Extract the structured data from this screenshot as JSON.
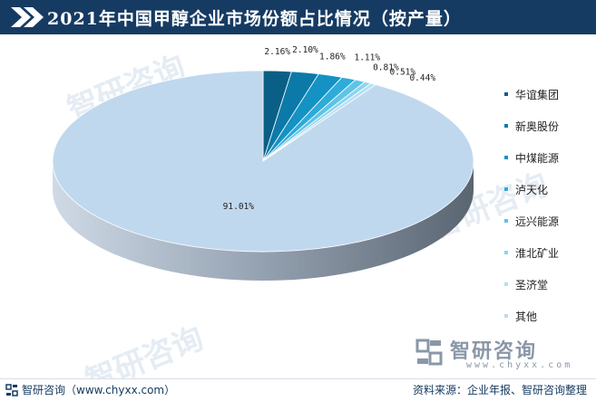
{
  "header": {
    "title": "2021年中国甲醇企业市场份额占比情况（按产量）"
  },
  "chart_data": {
    "type": "pie",
    "title": "2021年中国甲醇企业市场份额占比情况（按产量）",
    "slices": [
      {
        "name": "华谊集团",
        "value": 2.16,
        "label": "2.16%",
        "color": "#0a5f86"
      },
      {
        "name": "新奥股份",
        "value": 2.1,
        "label": "2.10%",
        "color": "#0b7aa8"
      },
      {
        "name": "中煤能源",
        "value": 1.86,
        "label": "1.86%",
        "color": "#1492c4"
      },
      {
        "name": "泸天化",
        "value": 1.11,
        "label": "1.11%",
        "color": "#2eabd8"
      },
      {
        "name": "远兴能源",
        "value": 0.81,
        "label": "0.81%",
        "color": "#5ec4e6"
      },
      {
        "name": "淮北矿业",
        "value": 0.51,
        "label": "0.51%",
        "color": "#8dd3ee"
      },
      {
        "name": "圣济堂",
        "value": 0.44,
        "label": "0.44%",
        "color": "#b3e0f3"
      },
      {
        "name": "其他",
        "value": 91.01,
        "label": "91.01%",
        "color": "#c0d8ee"
      }
    ],
    "legend_position": "right"
  },
  "brand": {
    "name": "智研咨询",
    "url": "www.chyxx.com"
  },
  "watermark": {
    "text": "智研咨询"
  },
  "footer": {
    "left_text": "智研咨询（www.chyxx.com）",
    "right_text": "资料来源：企业年报、智研咨询整理"
  }
}
